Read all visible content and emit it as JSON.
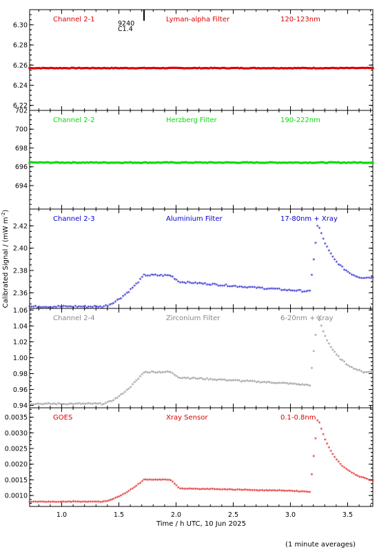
{
  "chart_data": {
    "type": "scatter",
    "xlabel": "Time / h UTC, 10 Jun 2025",
    "ylabel": "Calibrated Signal / (mW m",
    "ylabel_sup": "-2",
    "ylabel_close": ")",
    "footnote": "(1 minute averages)",
    "xlim": [
      0.72,
      3.72
    ],
    "x_ticks": [
      1.0,
      1.5,
      2.0,
      2.5,
      3.0,
      3.5
    ],
    "x_tick_labels": [
      "1.0",
      "1.5",
      "2.0",
      "2.5",
      "3.0",
      "3.5"
    ],
    "flare_annotation": {
      "time": 1.72,
      "lines": [
        "9240",
        "C1.4"
      ]
    },
    "panels": [
      {
        "name": "Channel 2-1",
        "filter": "Lyman-alpha Filter",
        "band": "120-123nm",
        "color": "#dd0000",
        "ylim": [
          6.215,
          6.315
        ],
        "y_ticks": [
          6.22,
          6.24,
          6.26,
          6.28,
          6.3
        ],
        "y_tick_labels": [
          "6.22",
          "6.24",
          "6.26",
          "6.28",
          "6.30"
        ],
        "profile": {
          "base": 6.257,
          "noise": 0.0003,
          "plateau": 0,
          "peak": 0,
          "tail": 0,
          "gap": 0
        }
      },
      {
        "name": "Channel 2-2",
        "filter": "Herzberg Filter",
        "band": "190-222nm",
        "color": "#00dd00",
        "ylim": [
          691.5,
          702.0
        ],
        "y_ticks": [
          694,
          696,
          698,
          700,
          702
        ],
        "y_tick_labels": [
          "694",
          "696",
          "698",
          "700",
          "702"
        ],
        "profile": {
          "base": 696.45,
          "noise": 0.04,
          "plateau": 0,
          "peak": 0,
          "tail": 0,
          "gap": 0
        }
      },
      {
        "name": "Channel 2-3",
        "filter": "Aluminium Filter",
        "band": "17-80nm + Xray",
        "color": "#0000cc",
        "ylim": [
          2.346,
          2.435
        ],
        "y_ticks": [
          2.36,
          2.38,
          2.4,
          2.42
        ],
        "y_tick_labels": [
          "2.36",
          "2.38",
          "2.40",
          "2.42"
        ],
        "profile": {
          "base": 2.347,
          "noise": 0.0007,
          "plateau": 0.028,
          "mid": 0.022,
          "late": 0.015,
          "peak": 0.075,
          "tail": 0.026
        }
      },
      {
        "name": "Channel 2-4",
        "filter": "Zirconium Filter",
        "band": "6-20nm + Xray",
        "color": "#888888",
        "ylim": [
          0.937,
          1.062
        ],
        "y_ticks": [
          0.94,
          0.96,
          0.98,
          1.0,
          1.02,
          1.04,
          1.06
        ],
        "y_tick_labels": [
          "0.94",
          "0.96",
          "0.98",
          "1.00",
          "1.02",
          "1.04",
          "1.06"
        ],
        "profile": {
          "base": 0.941,
          "noise": 0.0008,
          "plateau": 0.04,
          "mid": 0.033,
          "late": 0.026,
          "peak": 0.112,
          "tail": 0.04
        }
      },
      {
        "name": "GOES",
        "filter": "Xray Sensor",
        "band": "0.1-0.8nm",
        "color": "#dd0000",
        "ylim": [
          0.00065,
          0.0038
        ],
        "y_ticks": [
          0.001,
          0.0015,
          0.002,
          0.0025,
          0.003,
          0.0035
        ],
        "y_tick_labels": [
          "0.0010",
          "0.0015",
          "0.0020",
          "0.0025",
          "0.0030",
          "0.0035"
        ],
        "profile": {
          "base": 0.00078,
          "noise": 8e-06,
          "plateau": 0.0007,
          "mid": 0.00042,
          "late": 0.00035,
          "peak": 0.0027,
          "tail": 0.00045
        }
      }
    ]
  }
}
